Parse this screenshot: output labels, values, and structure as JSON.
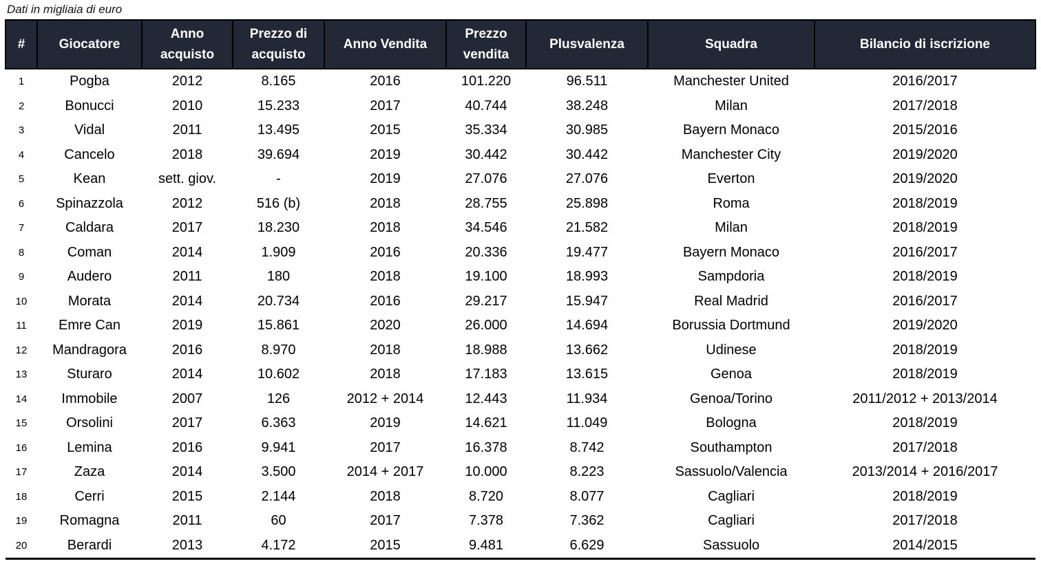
{
  "caption": "Dati in migliaia di euro",
  "colors": {
    "header_bg": "#222836",
    "header_text": "#ffffff",
    "border": "#000000",
    "body_text": "#000000",
    "page_bg": "#ffffff"
  },
  "column_keys": [
    "num",
    "giocatore",
    "anno_acquisto",
    "prezzo_acquisto",
    "anno_vendita",
    "prezzo_vendita",
    "plusvalenza",
    "squadra",
    "bilancio_iscrizione"
  ],
  "chart_data": {
    "type": "table",
    "title": "Dati in migliaia di euro",
    "columns": [
      "#",
      "Giocatore",
      "Anno acquisto",
      "Prezzo di acquisto",
      "Anno Vendita",
      "Prezzo vendita",
      "Plusvalenza",
      "Squadra",
      "Bilancio di iscrizione"
    ],
    "rows": [
      [
        "1",
        "Pogba",
        "2012",
        "8.165",
        "2016",
        "101.220",
        "96.511",
        "Manchester United",
        "2016/2017"
      ],
      [
        "2",
        "Bonucci",
        "2010",
        "15.233",
        "2017",
        "40.744",
        "38.248",
        "Milan",
        "2017/2018"
      ],
      [
        "3",
        "Vidal",
        "2011",
        "13.495",
        "2015",
        "35.334",
        "30.985",
        "Bayern Monaco",
        "2015/2016"
      ],
      [
        "4",
        "Cancelo",
        "2018",
        "39.694",
        "2019",
        "30.442",
        "30.442",
        "Manchester City",
        "2019/2020"
      ],
      [
        "5",
        "Kean",
        "sett. giov.",
        "-",
        "2019",
        "27.076",
        "27.076",
        "Everton",
        "2019/2020"
      ],
      [
        "6",
        "Spinazzola",
        "2012",
        "516 (b)",
        "2018",
        "28.755",
        "25.898",
        "Roma",
        "2018/2019"
      ],
      [
        "7",
        "Caldara",
        "2017",
        "18.230",
        "2018",
        "34.546",
        "21.582",
        "Milan",
        "2018/2019"
      ],
      [
        "8",
        "Coman",
        "2014",
        "1.909",
        "2016",
        "20.336",
        "19.477",
        "Bayern Monaco",
        "2016/2017"
      ],
      [
        "9",
        "Audero",
        "2011",
        "180",
        "2018",
        "19.100",
        "18.993",
        "Sampdoria",
        "2018/2019"
      ],
      [
        "10",
        "Morata",
        "2014",
        "20.734",
        "2016",
        "29.217",
        "15.947",
        "Real Madrid",
        "2016/2017"
      ],
      [
        "11",
        "Emre Can",
        "2019",
        "15.861",
        "2020",
        "26.000",
        "14.694",
        "Borussia Dortmund",
        "2019/2020"
      ],
      [
        "12",
        "Mandragora",
        "2016",
        "8.970",
        "2018",
        "18.988",
        "13.662",
        "Udinese",
        "2018/2019"
      ],
      [
        "13",
        "Sturaro",
        "2014",
        "10.602",
        "2018",
        "17.183",
        "13.615",
        "Genoa",
        "2018/2019"
      ],
      [
        "14",
        "Immobile",
        "2007",
        "126",
        "2012 + 2014",
        "12.443",
        "11.934",
        "Genoa/Torino",
        "2011/2012 + 2013/2014"
      ],
      [
        "15",
        "Orsolini",
        "2017",
        "6.363",
        "2019",
        "14.621",
        "11.049",
        "Bologna",
        "2018/2019"
      ],
      [
        "16",
        "Lemina",
        "2016",
        "9.941",
        "2017",
        "16.378",
        "8.742",
        "Southampton",
        "2017/2018"
      ],
      [
        "17",
        "Zaza",
        "2014",
        "3.500",
        "2014 + 2017",
        "10.000",
        "8.223",
        "Sassuolo/Valencia",
        "2013/2014 + 2016/2017"
      ],
      [
        "18",
        "Cerri",
        "2015",
        "2.144",
        "2018",
        "8.720",
        "8.077",
        "Cagliari",
        "2018/2019"
      ],
      [
        "19",
        "Romagna",
        "2011",
        "60",
        "2017",
        "7.378",
        "7.362",
        "Cagliari",
        "2017/2018"
      ],
      [
        "20",
        "Berardi",
        "2013",
        "4.172",
        "2015",
        "9.481",
        "6.629",
        "Sassuolo",
        "2014/2015"
      ]
    ]
  }
}
